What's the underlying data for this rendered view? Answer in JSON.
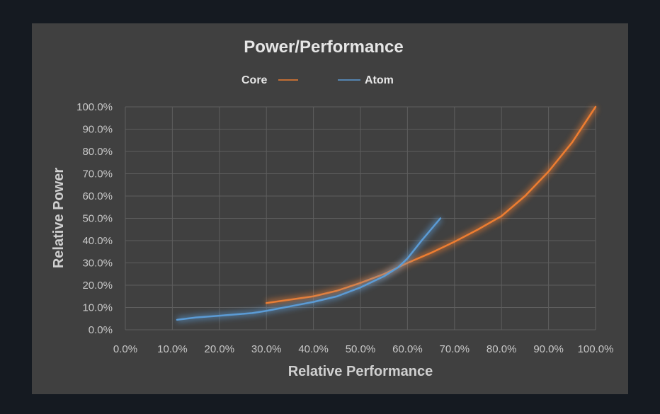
{
  "chart_data": {
    "type": "line",
    "title": "Power/Performance",
    "xlabel": "Relative Performance",
    "ylabel": "Relative Power",
    "xlim": [
      0,
      100
    ],
    "ylim": [
      0,
      100
    ],
    "grid": true,
    "legend_position": "top-center",
    "x_ticks": [
      "0.0%",
      "10.0%",
      "20.0%",
      "30.0%",
      "40.0%",
      "50.0%",
      "60.0%",
      "70.0%",
      "80.0%",
      "90.0%",
      "100.0%"
    ],
    "y_ticks": [
      "0.0%",
      "10.0%",
      "20.0%",
      "30.0%",
      "40.0%",
      "50.0%",
      "60.0%",
      "70.0%",
      "80.0%",
      "90.0%",
      "100.0%"
    ],
    "series": [
      {
        "name": "Core",
        "color": "#ed7d31",
        "x": [
          30,
          35,
          40,
          45,
          50,
          55,
          60,
          65,
          70,
          75,
          80,
          85,
          90,
          95,
          100
        ],
        "y": [
          12,
          13.5,
          15,
          17.5,
          21,
          25,
          30,
          34.5,
          39.5,
          45,
          51,
          60,
          71,
          84,
          100
        ]
      },
      {
        "name": "Atom",
        "color": "#5b9bd5",
        "x": [
          11,
          15,
          20,
          27,
          30,
          35,
          40,
          45,
          50,
          55,
          58,
          60,
          63,
          65,
          67
        ],
        "y": [
          4.5,
          5.5,
          6.3,
          7.5,
          8.5,
          10.5,
          12.5,
          15,
          19,
          24,
          28,
          32,
          40,
          45,
          50
        ]
      }
    ]
  }
}
